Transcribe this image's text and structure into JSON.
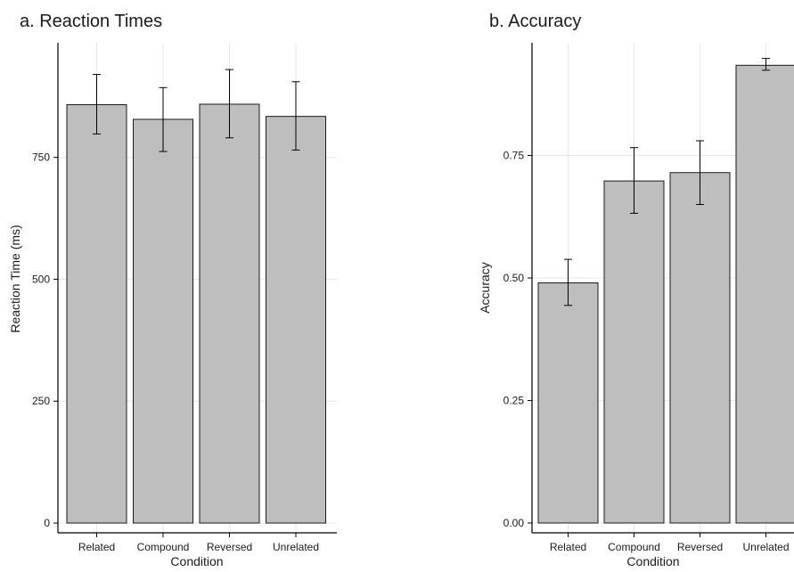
{
  "chart_data": [
    {
      "type": "bar",
      "title": "a. Reaction Times",
      "xlabel": "Condition",
      "ylabel": "Reaction Time (ms)",
      "categories": [
        "Related",
        "Compound",
        "Reversed",
        "Unrelated"
      ],
      "values": [
        858,
        828,
        859,
        834
      ],
      "error_low": [
        798,
        762,
        790,
        765
      ],
      "error_high": [
        920,
        893,
        930,
        905
      ],
      "ylim": [
        -20,
        985
      ],
      "yticks": [
        0,
        250,
        500,
        750
      ],
      "ytick_labels": [
        "0",
        "250",
        "500",
        "750"
      ],
      "bar_color": "#bebebe",
      "grid": true
    },
    {
      "type": "bar",
      "title": "b. Accuracy",
      "xlabel": "Condition",
      "ylabel": "Accuracy",
      "categories": [
        "Related",
        "Compound",
        "Reversed",
        "Unrelated"
      ],
      "values": [
        0.49,
        0.698,
        0.715,
        0.934
      ],
      "error_low": [
        0.444,
        0.632,
        0.65,
        0.924
      ],
      "error_high": [
        0.538,
        0.766,
        0.78,
        0.948
      ],
      "ylim": [
        -0.02,
        0.98
      ],
      "yticks": [
        0.0,
        0.25,
        0.5,
        0.75
      ],
      "ytick_labels": [
        "0.00",
        "0.25",
        "0.50",
        "0.75"
      ],
      "bar_color": "#bebebe",
      "grid": true
    }
  ]
}
